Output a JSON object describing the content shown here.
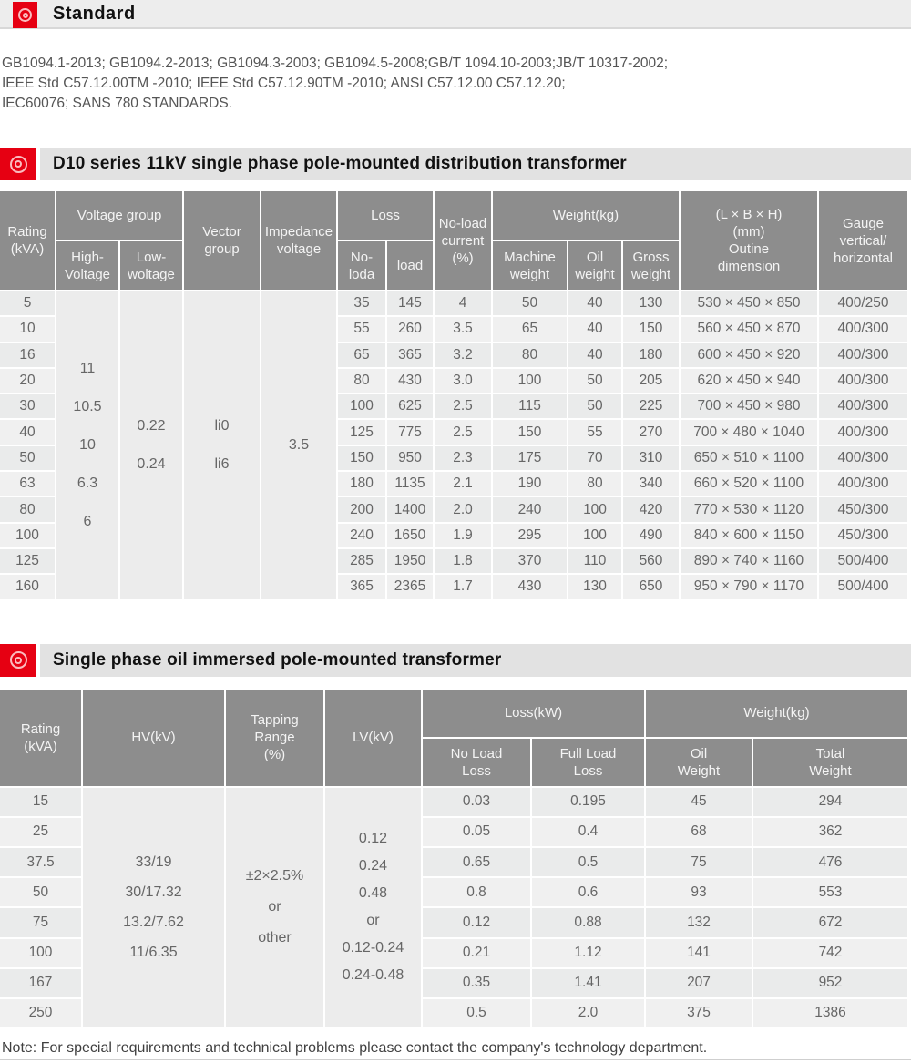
{
  "colors": {
    "accent_red": "#e60012",
    "topbar_gray": "#ededed",
    "section_bar_gray": "#e2e2e2",
    "table_header_gray": "#8d8d8d",
    "row_odd": "#eaebeb",
    "row_even": "#f0f0f0",
    "merged_cell_gray": "#ececec"
  },
  "sections": {
    "standard": {
      "title": "Standard"
    },
    "d10": {
      "title": "D10 series 11kV single phase pole-mounted distribution transformer"
    },
    "single_phase": {
      "title": "Single phase oil immersed pole-mounted  transformer"
    }
  },
  "standards": {
    "lines": [
      "GB1094.1-2013; GB1094.2-2013; GB1094.3-2003; GB1094.5-2008;GB/T 1094.10-2003;JB/T 10317-2002;",
      "IEEE Std C57.12.00TM -2010; IEEE Std C57.12.90TM -2010; ANSI C57.12.00 C57.12.20;",
      "IEC60076; SANS 780 STANDARDS."
    ]
  },
  "table1": {
    "header": {
      "rating": "Rating\n(kVA)",
      "voltage_group": "Voltage group",
      "high_voltage": "High-\nVoltage",
      "low_voltage": "Low-\nwoltage",
      "vector_group": "Vector\ngroup",
      "impedance_voltage": "Impedance\nvoltage",
      "loss": "Loss",
      "no_load_loss": "No-\nloda",
      "load_loss": "load",
      "no_load_current": "No-load\ncurrent\n(%)",
      "weight": "Weight(kg)",
      "machine_weight": "Machine\nweight",
      "oil_weight": "Oil\nweight",
      "gross_weight": "Gross\nweight",
      "dimension": "(L × B × H)\n(mm)\nOutine\ndimension",
      "gauge": "Gauge\nvertical/\nhorizontal"
    },
    "merged": {
      "high_voltage": [
        "11",
        "10.5",
        "10",
        "6.3",
        "6"
      ],
      "low_voltage": [
        "0.22",
        "0.24"
      ],
      "vector_group": [
        "li0",
        "li6"
      ],
      "impedance_voltage": [
        "3.5"
      ]
    },
    "cols": {
      "rating": [
        "5",
        "10",
        "16",
        "20",
        "30",
        "40",
        "50",
        "63",
        "80",
        "100",
        "125",
        "160"
      ],
      "no_load_loss": [
        "35",
        "55",
        "65",
        "80",
        "100",
        "125",
        "150",
        "180",
        "200",
        "240",
        "285",
        "365"
      ],
      "load_loss": [
        "145",
        "260",
        "365",
        "430",
        "625",
        "775",
        "950",
        "1135",
        "1400",
        "1650",
        "1950",
        "2365"
      ],
      "no_load_current": [
        "4",
        "3.5",
        "3.2",
        "3.0",
        "2.5",
        "2.5",
        "2.3",
        "2.1",
        "2.0",
        "1.9",
        "1.8",
        "1.7"
      ],
      "machine_weight": [
        "50",
        "65",
        "80",
        "100",
        "115",
        "150",
        "175",
        "190",
        "240",
        "295",
        "370",
        "430"
      ],
      "oil_weight": [
        "40",
        "40",
        "40",
        "50",
        "50",
        "55",
        "70",
        "80",
        "100",
        "100",
        "110",
        "130"
      ],
      "gross_weight": [
        "130",
        "150",
        "180",
        "205",
        "225",
        "270",
        "310",
        "340",
        "420",
        "490",
        "560",
        "650"
      ],
      "dimension": [
        "530 × 450 × 850",
        "560 × 450 × 870",
        "600 × 450 × 920",
        "620 × 450 × 940",
        "700 × 450 × 980",
        "700 × 480 × 1040",
        "650 × 510 × 1100",
        "660 × 520 × 1100",
        "770 × 530 × 1120",
        "840 × 600 × 1150",
        "890 × 740 × 1160",
        "950 × 790 × 1170"
      ],
      "gauge": [
        "400/250",
        "400/300",
        "400/300",
        "400/300",
        "400/300",
        "400/300",
        "400/300",
        "400/300",
        "450/300",
        "450/300",
        "500/400",
        "500/400"
      ]
    }
  },
  "table2": {
    "header": {
      "rating": "Rating\n(kVA)",
      "hv": "HV(kV)",
      "tapping": "Tapping\nRange\n(%)",
      "lv": "LV(kV)",
      "loss": "Loss(kW)",
      "no_load_loss": "No Load\nLoss",
      "full_load_loss": "Full Load\nLoss",
      "weight": "Weight(kg)",
      "oil_weight": "Oil\nWeight",
      "total_weight": "Total\nWeight"
    },
    "merged": {
      "hv": [
        "33/19",
        "30/17.32",
        "13.2/7.62",
        "11/6.35"
      ],
      "tapping": [
        "±2×2.5%",
        "or",
        "other"
      ],
      "lv": [
        "0.12",
        "0.24",
        "0.48",
        "or",
        "0.12-0.24",
        "0.24-0.48"
      ]
    },
    "cols": {
      "rating": [
        "15",
        "25",
        "37.5",
        "50",
        "75",
        "100",
        "167",
        "250"
      ],
      "no_load_loss": [
        "0.03",
        "0.05",
        "0.65",
        "0.8",
        "0.12",
        "0.21",
        "0.35",
        "0.5"
      ],
      "full_load_loss": [
        "0.195",
        "0.4",
        "0.5",
        "0.6",
        "0.88",
        "1.12",
        "1.41",
        "2.0"
      ],
      "oil_weight": [
        "45",
        "68",
        "75",
        "93",
        "132",
        "141",
        "207",
        "375"
      ],
      "total_weight": [
        "294",
        "362",
        "476",
        "553",
        "672",
        "742",
        "952",
        "1386"
      ]
    }
  },
  "note": "Note: For special requirements and technical problems please contact the company's technology department."
}
